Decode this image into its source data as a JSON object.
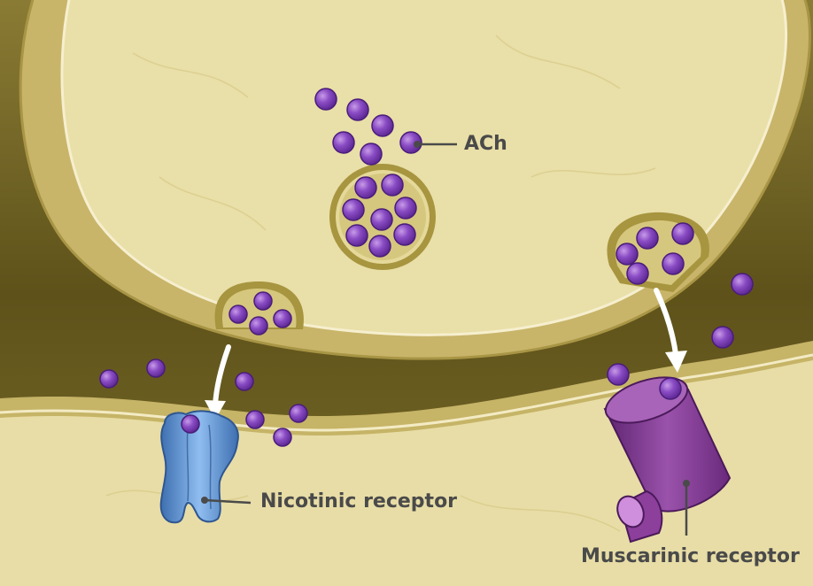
{
  "labels": {
    "ach": "ACh",
    "nicotinic": "Nicotinic receptor",
    "muscarinic": "Muscarinic receptor"
  },
  "colors": {
    "cleft": "#6a5d1f",
    "membrane": "#c8b56a",
    "cytoplasm": "#e9dfa8",
    "molecule": "#7b3fb2",
    "nicotinic": "#5b93d6",
    "muscarinic": "#7e3a8c",
    "label_text": "#4a4a4a",
    "arrow": "#ffffff"
  }
}
